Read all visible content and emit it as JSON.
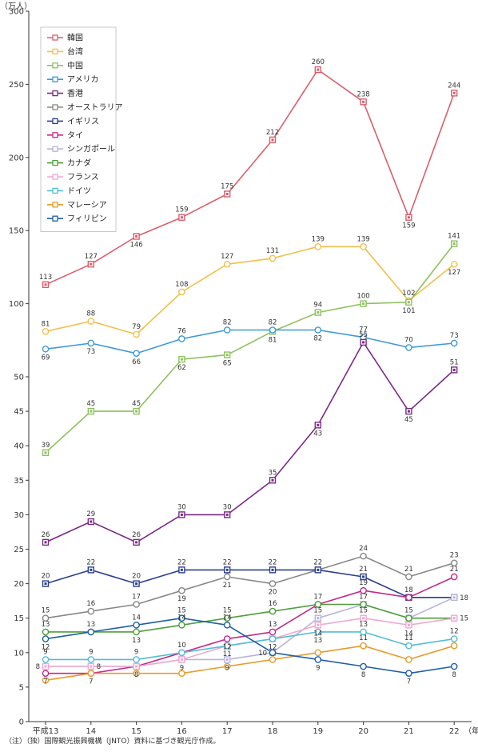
{
  "chart_data": {
    "type": "line",
    "ylabel": "（万人）",
    "x_suffix": "（年）",
    "categories": [
      "平成13",
      "14",
      "15",
      "16",
      "17",
      "18",
      "19",
      "20",
      "21",
      "22"
    ],
    "y_axis": {
      "scale": "broken",
      "lower_range": [
        0,
        55
      ],
      "lower_ticks": [
        0,
        5,
        10,
        15,
        20,
        25,
        30,
        35,
        40,
        45,
        50
      ],
      "upper_range": [
        50,
        300
      ],
      "upper_ticks": [
        100,
        150,
        200,
        250,
        300
      ]
    },
    "grid": false,
    "legend_position": "top-left",
    "series": [
      {
        "name": "韓国",
        "color": "#d95f6b",
        "values": [
          113,
          127,
          146,
          159,
          175,
          212,
          260,
          238,
          159,
          244
        ],
        "labels_below": [
          false,
          false,
          true,
          false,
          false,
          false,
          false,
          false,
          true,
          false
        ]
      },
      {
        "name": "台湾",
        "color": "#f0c04a",
        "values": [
          81,
          88,
          79,
          108,
          127,
          131,
          139,
          139,
          102,
          127
        ],
        "labels_below": [
          false,
          false,
          false,
          false,
          false,
          false,
          false,
          false,
          false,
          true
        ]
      },
      {
        "name": "中国",
        "color": "#8dc15e",
        "values": [
          39,
          45,
          45,
          62,
          65,
          81,
          94,
          100,
          101,
          141
        ],
        "labels_below": [
          false,
          false,
          false,
          true,
          true,
          true,
          false,
          false,
          true,
          false
        ]
      },
      {
        "name": "アメリカ",
        "color": "#3e9ad6",
        "values": [
          69,
          73,
          66,
          76,
          82,
          82,
          82,
          77,
          70,
          73
        ],
        "labels_below": [
          true,
          true,
          true,
          false,
          false,
          false,
          true,
          false,
          false,
          false
        ]
      },
      {
        "name": "香港",
        "color": "#7a2a86",
        "values": [
          26,
          29,
          26,
          30,
          30,
          35,
          43,
          55,
          45,
          51
        ],
        "labels_below": [
          false,
          false,
          false,
          false,
          false,
          false,
          true,
          false,
          true,
          false
        ]
      },
      {
        "name": "オーストラリア",
        "color": "#888888",
        "values": [
          15,
          16,
          17,
          19,
          21,
          20,
          22,
          24,
          21,
          23
        ],
        "labels_below": [
          false,
          false,
          false,
          true,
          true,
          true,
          false,
          false,
          false,
          false
        ]
      },
      {
        "name": "イギリス",
        "color": "#2b3e8c",
        "values": [
          20,
          22,
          20,
          22,
          22,
          22,
          22,
          21,
          18,
          18
        ],
        "labels_below": [
          false,
          false,
          false,
          false,
          false,
          false,
          false,
          false,
          false,
          false
        ]
      },
      {
        "name": "タイ",
        "color": "#c22a8a",
        "values": [
          7,
          7,
          8,
          10,
          12,
          13,
          17,
          19,
          18,
          21
        ],
        "labels_below": [
          false,
          false,
          false,
          false,
          false,
          false,
          false,
          false,
          false,
          false
        ]
      },
      {
        "name": "シンガポール",
        "color": "#b7b4dc",
        "values": [
          8,
          8,
          8,
          9,
          9,
          10,
          15,
          17,
          15,
          18
        ],
        "labels_below": [
          false,
          false,
          false,
          false,
          false,
          false,
          false,
          false,
          false,
          false
        ]
      },
      {
        "name": "カナダ",
        "color": "#4e9e3a",
        "values": [
          13,
          13,
          13,
          14,
          15,
          16,
          17,
          17,
          15,
          15
        ],
        "labels_below": [
          false,
          false,
          true,
          false,
          false,
          false,
          false,
          false,
          false,
          false
        ]
      },
      {
        "name": "フランス",
        "color": "#eea9cf",
        "values": [
          8,
          8,
          8,
          9,
          11,
          12,
          14,
          15,
          14,
          15
        ],
        "labels_below": [
          false,
          false,
          false,
          false,
          false,
          false,
          false,
          false,
          false,
          false
        ]
      },
      {
        "name": "ドイツ",
        "color": "#54bcd6",
        "values": [
          9,
          9,
          9,
          10,
          11,
          12,
          13,
          13,
          11,
          12
        ],
        "labels_below": [
          false,
          false,
          false,
          false,
          false,
          false,
          false,
          false,
          false,
          false
        ]
      },
      {
        "name": "マレーシア",
        "color": "#e79b2b",
        "values": [
          6,
          7,
          7,
          7,
          8,
          9,
          10,
          11,
          9,
          11
        ],
        "labels_below": [
          false,
          false,
          false,
          false,
          false,
          false,
          false,
          false,
          false,
          false
        ]
      },
      {
        "name": "フィリピン",
        "color": "#1f5fa6",
        "values": [
          12,
          13,
          14,
          15,
          14,
          10,
          9,
          8,
          7,
          8
        ],
        "labels_below": [
          false,
          false,
          false,
          false,
          false,
          false,
          false,
          false,
          false,
          false
        ]
      }
    ],
    "data_labels": [
      {
        "text": "113",
        "x": "平成13",
        "y": 113,
        "side": "above"
      },
      {
        "text": "127",
        "x": "14",
        "y": 127,
        "side": "above"
      },
      {
        "text": "146",
        "x": "15",
        "y": 146,
        "side": "below"
      },
      {
        "text": "159",
        "x": "16",
        "y": 159,
        "side": "above"
      },
      {
        "text": "175",
        "x": "17",
        "y": 175,
        "side": "above"
      },
      {
        "text": "212",
        "x": "18",
        "y": 212,
        "side": "above"
      },
      {
        "text": "260",
        "x": "19",
        "y": 260,
        "side": "above"
      },
      {
        "text": "238",
        "x": "20",
        "y": 238,
        "side": "above"
      },
      {
        "text": "159",
        "x": "21",
        "y": 159,
        "side": "below"
      },
      {
        "text": "244",
        "x": "22",
        "y": 244,
        "side": "above"
      },
      {
        "text": "81",
        "x": "平成13",
        "y": 81,
        "side": "above"
      },
      {
        "text": "88",
        "x": "14",
        "y": 88,
        "side": "above"
      },
      {
        "text": "79",
        "x": "15",
        "y": 79,
        "side": "above"
      },
      {
        "text": "108",
        "x": "16",
        "y": 108,
        "side": "above"
      },
      {
        "text": "127",
        "x": "17",
        "y": 127,
        "side": "above"
      },
      {
        "text": "131",
        "x": "18",
        "y": 131,
        "side": "above"
      },
      {
        "text": "139",
        "x": "19",
        "y": 139,
        "side": "above"
      },
      {
        "text": "139",
        "x": "20",
        "y": 139,
        "side": "above"
      },
      {
        "text": "102",
        "x": "21",
        "y": 102,
        "side": "above"
      },
      {
        "text": "127",
        "x": "22",
        "y": 127,
        "side": "below"
      },
      {
        "text": "141",
        "x": "22",
        "y": 141,
        "side": "above"
      },
      {
        "text": "101",
        "x": "21",
        "y": 101,
        "side": "below"
      },
      {
        "text": "69",
        "x": "平成13",
        "y": 69,
        "side": "below"
      },
      {
        "text": "73",
        "x": "14",
        "y": 73,
        "side": "below"
      },
      {
        "text": "66",
        "x": "15",
        "y": 66,
        "side": "below"
      },
      {
        "text": "76",
        "x": "16",
        "y": 76,
        "side": "above"
      },
      {
        "text": "82",
        "x": "17",
        "y": 82,
        "side": "above"
      },
      {
        "text": "82",
        "x": "18",
        "y": 82,
        "side": "above"
      },
      {
        "text": "81",
        "x": "18",
        "y": 81,
        "side": "below"
      },
      {
        "text": "94",
        "x": "19",
        "y": 94,
        "side": "above"
      },
      {
        "text": "82",
        "x": "19",
        "y": 82,
        "side": "below"
      },
      {
        "text": "100",
        "x": "20",
        "y": 100,
        "side": "above"
      },
      {
        "text": "77",
        "x": "20",
        "y": 77,
        "side": "above"
      },
      {
        "text": "70",
        "x": "21",
        "y": 70,
        "side": "above"
      },
      {
        "text": "73",
        "x": "22",
        "y": 73,
        "side": "above"
      },
      {
        "text": "39",
        "x": "平成13",
        "y": 39,
        "side": "above"
      },
      {
        "text": "45",
        "x": "14",
        "y": 45,
        "side": "above"
      },
      {
        "text": "45",
        "x": "15",
        "y": 45,
        "side": "above"
      },
      {
        "text": "62",
        "x": "16",
        "y": 62,
        "side": "below"
      },
      {
        "text": "65",
        "x": "17",
        "y": 65,
        "side": "below"
      },
      {
        "text": "26",
        "x": "平成13",
        "y": 26,
        "side": "above"
      },
      {
        "text": "29",
        "x": "14",
        "y": 29,
        "side": "above"
      },
      {
        "text": "26",
        "x": "15",
        "y": 26,
        "side": "above"
      },
      {
        "text": "30",
        "x": "16",
        "y": 30,
        "side": "above"
      },
      {
        "text": "30",
        "x": "17",
        "y": 30,
        "side": "above"
      },
      {
        "text": "35",
        "x": "18",
        "y": 35,
        "side": "above"
      },
      {
        "text": "43",
        "x": "19",
        "y": 43,
        "side": "below"
      },
      {
        "text": "55",
        "x": "20",
        "y": 55,
        "side": "above"
      },
      {
        "text": "45",
        "x": "21",
        "y": 45,
        "side": "below"
      },
      {
        "text": "51",
        "x": "22",
        "y": 51,
        "side": "above"
      },
      {
        "text": "24",
        "x": "20",
        "y": 24,
        "side": "above"
      },
      {
        "text": "21",
        "x": "21",
        "y": 21,
        "side": "above"
      },
      {
        "text": "23",
        "x": "22",
        "y": 23,
        "side": "above"
      },
      {
        "text": "20",
        "x": "平成13",
        "y": 20,
        "side": "above"
      },
      {
        "text": "22",
        "x": "14",
        "y": 22,
        "side": "above"
      },
      {
        "text": "20",
        "x": "15",
        "y": 20,
        "side": "above"
      },
      {
        "text": "22",
        "x": "16",
        "y": 22,
        "side": "above"
      },
      {
        "text": "22",
        "x": "17",
        "y": 22,
        "side": "above"
      },
      {
        "text": "22",
        "x": "18",
        "y": 22,
        "side": "above"
      },
      {
        "text": "22",
        "x": "19",
        "y": 22,
        "side": "above"
      },
      {
        "text": "19",
        "x": "16",
        "y": 19,
        "side": "below"
      },
      {
        "text": "21",
        "x": "17",
        "y": 21,
        "side": "below"
      },
      {
        "text": "20",
        "x": "18",
        "y": 20,
        "side": "below"
      },
      {
        "text": "21",
        "x": "20",
        "y": 21,
        "side": "above"
      },
      {
        "text": "15",
        "x": "平成13",
        "y": 15,
        "side": "above"
      },
      {
        "text": "16",
        "x": "14",
        "y": 16,
        "side": "above"
      },
      {
        "text": "17",
        "x": "15",
        "y": 17,
        "side": "above"
      },
      {
        "text": "19",
        "x": "20",
        "y": 19,
        "side": "above"
      },
      {
        "text": "18",
        "x": "21",
        "y": 18,
        "side": "above"
      },
      {
        "text": "21",
        "x": "22",
        "y": 21,
        "side": "above"
      },
      {
        "text": "18",
        "x": "22",
        "y": 18,
        "side": "right"
      },
      {
        "text": "17",
        "x": "19",
        "y": 17,
        "side": "above"
      },
      {
        "text": "17",
        "x": "20",
        "y": 17,
        "side": "above"
      },
      {
        "text": "16",
        "x": "18",
        "y": 16,
        "side": "above"
      },
      {
        "text": "15",
        "x": "17",
        "y": 15,
        "side": "above"
      },
      {
        "text": "15",
        "x": "21",
        "y": 15,
        "side": "above"
      },
      {
        "text": "15",
        "x": "22",
        "y": 15,
        "side": "right"
      },
      {
        "text": "13",
        "x": "平成13",
        "y": 13,
        "side": "above"
      },
      {
        "text": "13",
        "x": "14",
        "y": 13,
        "side": "above"
      },
      {
        "text": "14",
        "x": "15",
        "y": 14,
        "side": "above"
      },
      {
        "text": "15",
        "x": "16",
        "y": 15,
        "side": "above"
      },
      {
        "text": "13",
        "x": "15",
        "y": 13,
        "side": "below"
      },
      {
        "text": "12",
        "x": "平成13",
        "y": 12,
        "side": "below"
      },
      {
        "text": "14",
        "x": "17",
        "y": 14,
        "side": "above"
      },
      {
        "text": "13",
        "x": "18",
        "y": 13,
        "side": "above"
      },
      {
        "text": "15",
        "x": "19",
        "y": 15,
        "side": "above"
      },
      {
        "text": "14",
        "x": "19",
        "y": 14,
        "side": "below"
      },
      {
        "text": "15",
        "x": "20",
        "y": 15,
        "side": "above"
      },
      {
        "text": "14",
        "x": "21",
        "y": 14,
        "side": "below"
      },
      {
        "text": "12",
        "x": "17",
        "y": 12,
        "side": "below"
      },
      {
        "text": "12",
        "x": "18",
        "y": 12,
        "side": "below"
      },
      {
        "text": "13",
        "x": "19",
        "y": 13,
        "side": "below"
      },
      {
        "text": "13",
        "x": "20",
        "y": 13,
        "side": "above"
      },
      {
        "text": "12",
        "x": "22",
        "y": 12,
        "side": "above"
      },
      {
        "text": "9",
        "x": "平成13",
        "y": 9,
        "side": "above"
      },
      {
        "text": "9",
        "x": "14",
        "y": 9,
        "side": "above"
      },
      {
        "text": "9",
        "x": "15",
        "y": 9,
        "side": "above"
      },
      {
        "text": "14",
        "x": "16",
        "y": 14,
        "side": "above"
      },
      {
        "text": "8",
        "x": "平成13",
        "y": 8,
        "side": "left"
      },
      {
        "text": "8",
        "x": "14",
        "y": 8,
        "side": "right"
      },
      {
        "text": "10",
        "x": "16",
        "y": 10,
        "side": "above"
      },
      {
        "text": "11",
        "x": "17",
        "y": 11,
        "side": "below"
      },
      {
        "text": "10",
        "x": "18",
        "y": 10,
        "side": "left"
      },
      {
        "text": "11",
        "x": "20",
        "y": 11,
        "side": "above"
      },
      {
        "text": "11",
        "x": "21",
        "y": 11,
        "side": "above"
      },
      {
        "text": "7",
        "x": "平成13",
        "y": 7,
        "side": "below"
      },
      {
        "text": "7",
        "x": "14",
        "y": 7,
        "side": "below"
      },
      {
        "text": "8",
        "x": "15",
        "y": 8,
        "side": "below"
      },
      {
        "text": "9",
        "x": "16",
        "y": 9,
        "side": "below"
      },
      {
        "text": "9",
        "x": "17",
        "y": 9,
        "side": "below"
      },
      {
        "text": "9",
        "x": "19",
        "y": 9,
        "side": "below"
      },
      {
        "text": "8",
        "x": "20",
        "y": 8,
        "side": "below"
      },
      {
        "text": "7",
        "x": "21",
        "y": 7,
        "side": "below"
      },
      {
        "text": "8",
        "x": "22",
        "y": 8,
        "side": "below"
      }
    ]
  },
  "note": "（注）（独）国際観光振興機構（JNTO）資料に基づき観光庁作成。"
}
